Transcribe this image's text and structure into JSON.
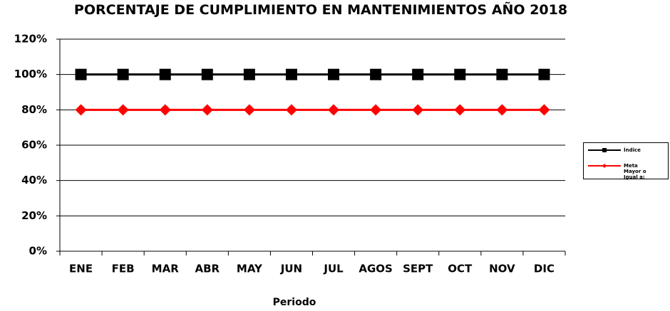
{
  "chart_data": {
    "type": "line",
    "title": "PORCENTAJE DE CUMPLIMIENTO EN MANTENIMIENTOS AÑO 2018",
    "x_label": "Periodo",
    "categories": [
      "ENE",
      "FEB",
      "MAR",
      "ABR",
      "MAY",
      "JUN",
      "JUL",
      "AGOS",
      "SEPT",
      "OCT",
      "NOV",
      "DIC"
    ],
    "series": [
      {
        "name": "Índice",
        "color": "#000000",
        "marker": "square",
        "values": [
          100,
          100,
          100,
          100,
          100,
          100,
          100,
          100,
          100,
          100,
          100,
          100
        ]
      },
      {
        "name": "Meta Mayor o Igual a:",
        "color": "#ff0000",
        "marker": "diamond",
        "values": [
          80,
          80,
          80,
          80,
          80,
          80,
          80,
          80,
          80,
          80,
          80,
          80
        ]
      }
    ],
    "ylim": [
      0,
      120
    ],
    "yticks": [
      {
        "value": 0,
        "label": "0%"
      },
      {
        "value": 20,
        "label": "20%"
      },
      {
        "value": 40,
        "label": "40%"
      },
      {
        "value": 60,
        "label": "60%"
      },
      {
        "value": 80,
        "label": "80%"
      },
      {
        "value": 100,
        "label": "100%"
      },
      {
        "value": 120,
        "label": "120%"
      }
    ],
    "grid": true,
    "legend": "right"
  }
}
